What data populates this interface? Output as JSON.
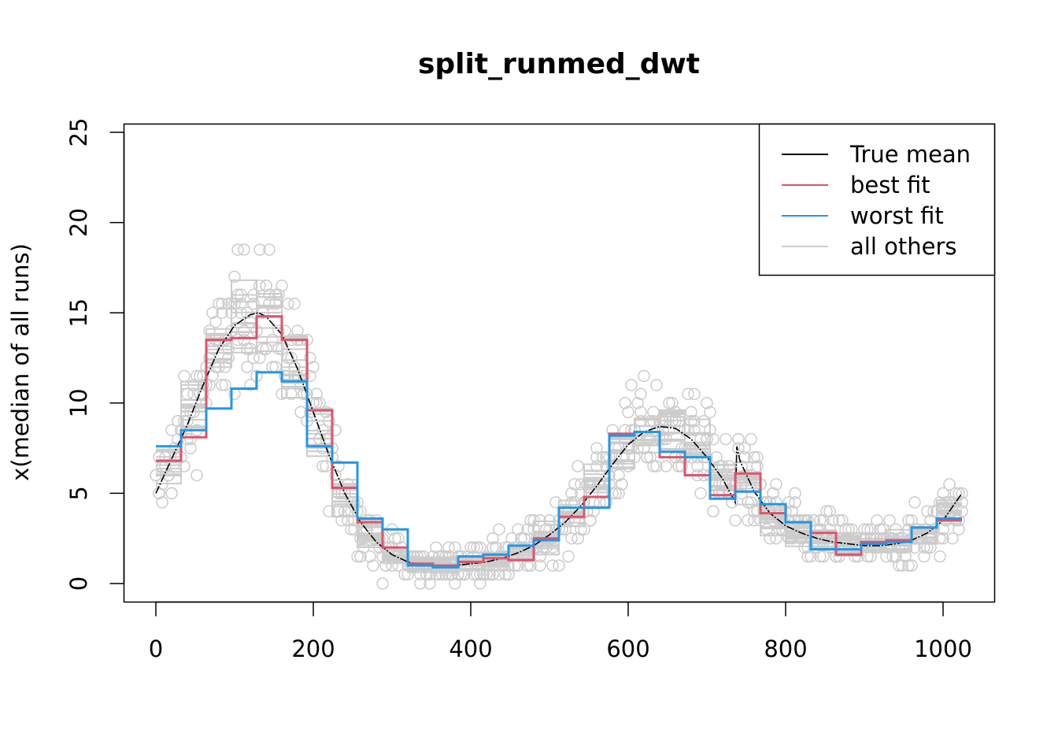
{
  "chart_data": {
    "type": "line",
    "title": "split_runmed_dwt",
    "xlabel": "",
    "ylabel": "x(median of all runs)",
    "xlim": [
      -16,
      1036
    ],
    "ylim": [
      -1,
      25.5
    ],
    "x_ticks": [
      0,
      200,
      400,
      600,
      800,
      1000
    ],
    "y_ticks": [
      0,
      5,
      10,
      15,
      20,
      25
    ],
    "grid": false,
    "legend": {
      "position": "top-right",
      "entries": [
        {
          "label": "True mean",
          "color": "#000000"
        },
        {
          "label": "best fit",
          "color": "#DF536B"
        },
        {
          "label": "worst fit",
          "color": "#2297E6"
        },
        {
          "label": "all others",
          "color": "#CCCCCC"
        }
      ]
    },
    "colors": {
      "true_mean": "#000000",
      "best_fit": "#DF536B",
      "worst_fit": "#2297E6",
      "others": "#CCCCCC"
    },
    "true_mean": {
      "x": [
        0,
        40,
        60,
        80,
        100,
        120,
        130,
        140,
        160,
        180,
        200,
        220,
        240,
        260,
        280,
        300,
        320,
        340,
        360,
        380,
        400,
        420,
        440,
        460,
        480,
        500,
        520,
        540,
        560,
        580,
        600,
        620,
        640,
        660,
        680,
        700,
        720,
        736,
        738,
        742,
        760,
        780,
        800,
        820,
        840,
        860,
        880,
        900,
        920,
        940,
        960,
        980,
        1000,
        1024
      ],
      "y": [
        5,
        8.8,
        11,
        13,
        14.3,
        14.9,
        15,
        14.8,
        13.8,
        11.9,
        9.5,
        7.1,
        5,
        3.4,
        2.3,
        1.6,
        1.2,
        1,
        1,
        1,
        1.1,
        1.2,
        1.4,
        1.7,
        2.1,
        2.7,
        3.4,
        4.3,
        5.4,
        6.6,
        7.7,
        8.4,
        8.7,
        8.6,
        8,
        7,
        5.8,
        4.5,
        7.6,
        6.8,
        5.1,
        3.9,
        3.2,
        2.8,
        2.5,
        2.3,
        2.2,
        2.1,
        2.1,
        2.2,
        2.4,
        2.8,
        3.5,
        5
      ]
    },
    "best_fit": {
      "breaks": [
        0,
        32,
        64,
        96,
        128,
        160,
        192,
        224,
        256,
        288,
        320,
        352,
        384,
        416,
        448,
        480,
        512,
        544,
        576,
        608,
        640,
        672,
        704,
        736,
        768,
        800,
        832,
        864,
        896,
        928,
        960,
        992,
        1024
      ],
      "values": [
        6.8,
        8.1,
        13.5,
        13.6,
        14.8,
        13.5,
        9.6,
        5.3,
        3.4,
        2.0,
        1.1,
        1.0,
        1.2,
        1.4,
        1.3,
        2.5,
        3.7,
        4.8,
        8.3,
        8.4,
        7.0,
        6.0,
        4.9,
        6.1,
        3.9,
        3.4,
        2.8,
        1.6,
        2.3,
        2.4,
        3.1,
        3.5
      ]
    },
    "worst_fit": {
      "breaks": [
        0,
        32,
        64,
        96,
        128,
        160,
        192,
        224,
        256,
        288,
        320,
        352,
        384,
        416,
        448,
        480,
        512,
        544,
        576,
        608,
        640,
        672,
        704,
        736,
        768,
        800,
        832,
        864,
        896,
        928,
        960,
        992,
        1024
      ],
      "values": [
        7.6,
        8.5,
        9.7,
        10.8,
        11.7,
        11.2,
        7.6,
        6.7,
        3.6,
        3.0,
        1.0,
        0.9,
        1.5,
        1.6,
        2.1,
        2.4,
        4.2,
        4.2,
        8.2,
        8.4,
        7.3,
        7.0,
        4.7,
        5.1,
        4.4,
        3.4,
        1.9,
        1.9,
        2.2,
        2.3,
        3.1,
        3.6
      ]
    }
  }
}
